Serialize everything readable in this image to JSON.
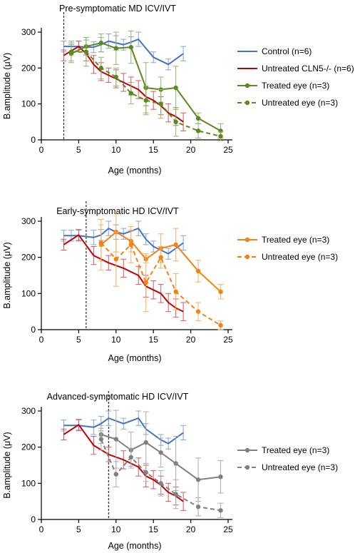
{
  "chart_data": [
    {
      "type": "line",
      "title": "Pre-symptomatic MD ICV/IVT",
      "xlabel": "Age (months)",
      "ylabel": "B.amplitude (μV)",
      "xlim": [
        0,
        25
      ],
      "ylim": [
        0,
        300
      ],
      "xticks": [
        0,
        5,
        10,
        15,
        20,
        25
      ],
      "yticks": [
        0,
        100,
        200,
        300
      ],
      "treatment_age_line": 3,
      "legend": [
        {
          "series": "control",
          "label": "Control (n=6)"
        },
        {
          "series": "untreated_cln5",
          "label": "Untreated CLN5-/- (n=6)"
        },
        {
          "series": "treated",
          "label": "Treated eye (n=3)"
        },
        {
          "series": "untreated_eye",
          "label": "Untreated eye (n=3)"
        }
      ],
      "series": [
        {
          "id": "control",
          "name": "Control (n=6)",
          "color": "#4472c4",
          "style": "solid",
          "marker": false,
          "points": [
            [
              3,
              260,
              15
            ],
            [
              4,
              260,
              15
            ],
            [
              5,
              260,
              15
            ],
            [
              6,
              258,
              20
            ],
            [
              7,
              258,
              15
            ],
            [
              8,
              265,
              20
            ],
            [
              9,
              275,
              20
            ],
            [
              10,
              270,
              20
            ],
            [
              11,
              265,
              15
            ],
            [
              12,
              272,
              15
            ],
            [
              13,
              280,
              20
            ],
            [
              15,
              230,
              15
            ],
            [
              17,
              210,
              15
            ],
            [
              19,
              240,
              20
            ]
          ]
        },
        {
          "id": "untreated_cln5",
          "name": "Untreated CLN5-/- (n=6)",
          "color": "#c00000",
          "style": "solid",
          "marker": false,
          "points": [
            [
              3,
              235,
              15
            ],
            [
              5,
              260,
              15
            ],
            [
              6,
              240,
              20
            ],
            [
              7,
              210,
              25
            ],
            [
              8,
              190,
              25
            ],
            [
              9,
              180,
              20
            ],
            [
              10,
              170,
              25
            ],
            [
              11,
              160,
              25
            ],
            [
              12,
              150,
              25
            ],
            [
              13,
              140,
              25
            ],
            [
              14,
              120,
              25
            ],
            [
              15,
              110,
              25
            ],
            [
              16,
              95,
              25
            ],
            [
              17,
              75,
              25
            ],
            [
              18,
              65,
              25
            ],
            [
              19,
              50,
              25
            ]
          ]
        },
        {
          "id": "treated",
          "name": "Treated eye (n=3)",
          "color": "#5a8a1e",
          "style": "solid",
          "marker": true,
          "points": [
            [
              4,
              240,
              25
            ],
            [
              6,
              260,
              25
            ],
            [
              8,
              270,
              25
            ],
            [
              10,
              255,
              45
            ],
            [
              12,
              258,
              45
            ],
            [
              14,
              145,
              70
            ],
            [
              16,
              140,
              35
            ],
            [
              18,
              145,
              60
            ],
            [
              21,
              60,
              15
            ],
            [
              24,
              25,
              20
            ]
          ]
        },
        {
          "id": "untreated_eye",
          "name": "Untreated eye (n=3)",
          "color": "#5a8a1e",
          "style": "dashed",
          "marker": true,
          "points": [
            [
              4,
              245,
              25
            ],
            [
              6,
              245,
              40
            ],
            [
              8,
              200,
              30
            ],
            [
              10,
              175,
              25
            ],
            [
              12,
              130,
              30
            ],
            [
              14,
              110,
              40
            ],
            [
              16,
              100,
              40
            ],
            [
              18,
              50,
              40
            ],
            [
              21,
              25,
              20
            ],
            [
              24,
              10,
              12
            ]
          ]
        }
      ]
    },
    {
      "type": "line",
      "title": "Early-symptomatic HD ICV/IVT",
      "xlabel": "Age (months)",
      "ylabel": "B.amplitude (μV)",
      "xlim": [
        0,
        25
      ],
      "ylim": [
        0,
        300
      ],
      "xticks": [
        0,
        5,
        10,
        15,
        20,
        25
      ],
      "yticks": [
        0,
        100,
        200,
        300
      ],
      "treatment_age_line": 6,
      "legend": [
        {
          "series": "treated",
          "label": "Treated eye (n=3)"
        },
        {
          "series": "untreated_eye",
          "label": "Untreated eye (n=3)"
        }
      ],
      "series": [
        {
          "id": "control",
          "name": "Control (n=6)",
          "color": "#4472c4",
          "style": "solid",
          "marker": false,
          "points": [
            [
              3,
              260,
              15
            ],
            [
              4,
              260,
              15
            ],
            [
              5,
              260,
              15
            ],
            [
              7,
              255,
              20
            ],
            [
              8,
              262,
              15
            ],
            [
              9,
              280,
              20
            ],
            [
              10,
              270,
              20
            ],
            [
              11,
              265,
              15
            ],
            [
              13,
              280,
              20
            ],
            [
              14,
              250,
              15
            ],
            [
              15,
              230,
              15
            ],
            [
              17,
              210,
              15
            ],
            [
              19,
              240,
              20
            ]
          ]
        },
        {
          "id": "untreated_cln5",
          "name": "Untreated CLN5-/- (n=6)",
          "color": "#c00000",
          "style": "solid",
          "marker": false,
          "points": [
            [
              3,
              235,
              15
            ],
            [
              5,
              262,
              15
            ],
            [
              7,
              205,
              25
            ],
            [
              9,
              185,
              20
            ],
            [
              11,
              170,
              25
            ],
            [
              13,
              150,
              25
            ],
            [
              14,
              120,
              30
            ],
            [
              15,
              110,
              25
            ],
            [
              16,
              100,
              25
            ],
            [
              17,
              75,
              25
            ],
            [
              18,
              60,
              25
            ],
            [
              19,
              50,
              25
            ]
          ]
        },
        {
          "id": "treated",
          "name": "Treated eye (n=3)",
          "color": "#f5820f",
          "style": "solid",
          "marker": true,
          "points": [
            [
              8,
              235,
              70
            ],
            [
              10,
              270,
              55
            ],
            [
              12,
              245,
              30
            ],
            [
              14,
              195,
              10
            ],
            [
              16,
              225,
              40
            ],
            [
              18,
              235,
              45
            ],
            [
              21,
              162,
              30
            ],
            [
              24,
              105,
              20
            ]
          ]
        },
        {
          "id": "untreated_eye",
          "name": "Untreated eye (n=3)",
          "color": "#f5820f",
          "style": "dashed",
          "marker": true,
          "points": [
            [
              8,
              240,
              50
            ],
            [
              10,
              195,
              75
            ],
            [
              12,
              235,
              50
            ],
            [
              14,
              130,
              80
            ],
            [
              16,
              200,
              30
            ],
            [
              18,
              105,
              50
            ],
            [
              21,
              50,
              25
            ],
            [
              24,
              12,
              12
            ]
          ]
        }
      ]
    },
    {
      "type": "line",
      "title": "Advanced-symptomatic HD ICV/IVT",
      "xlabel": "Age (months)",
      "ylabel": "B.amplitude (μV)",
      "xlim": [
        0,
        25
      ],
      "ylim": [
        0,
        300
      ],
      "xticks": [
        0,
        5,
        10,
        15,
        20,
        25
      ],
      "yticks": [
        0,
        100,
        200,
        300
      ],
      "treatment_age_line": 9,
      "legend": [
        {
          "series": "treated",
          "label": "Treated eye (n=3)"
        },
        {
          "series": "untreated_eye",
          "label": "Untreated eye (n=3)"
        }
      ],
      "series": [
        {
          "id": "control",
          "name": "Control (n=6)",
          "color": "#4472c4",
          "style": "solid",
          "marker": false,
          "points": [
            [
              3,
              260,
              15
            ],
            [
              5,
              260,
              15
            ],
            [
              7,
              255,
              20
            ],
            [
              8,
              265,
              20
            ],
            [
              9,
              280,
              20
            ],
            [
              11,
              265,
              15
            ],
            [
              13,
              280,
              20
            ],
            [
              14,
              250,
              15
            ],
            [
              16,
              220,
              15
            ],
            [
              17,
              210,
              15
            ],
            [
              19,
              240,
              20
            ]
          ]
        },
        {
          "id": "untreated_cln5",
          "name": "Untreated CLN5-/- (n=6)",
          "color": "#c00000",
          "style": "solid",
          "marker": false,
          "points": [
            [
              3,
              235,
              15
            ],
            [
              5,
              262,
              15
            ],
            [
              7,
              205,
              25
            ],
            [
              9,
              180,
              20
            ],
            [
              11,
              165,
              25
            ],
            [
              13,
              145,
              25
            ],
            [
              14,
              120,
              30
            ],
            [
              15,
              110,
              25
            ],
            [
              16,
              95,
              25
            ],
            [
              17,
              75,
              25
            ],
            [
              18,
              65,
              25
            ],
            [
              19,
              50,
              25
            ]
          ]
        },
        {
          "id": "treated",
          "name": "Treated eye (n=3)",
          "color": "#808080",
          "style": "solid",
          "marker": true,
          "points": [
            [
              8,
              235,
              25
            ],
            [
              10,
              222,
              80
            ],
            [
              12,
              192,
              50
            ],
            [
              14,
              213,
              85
            ],
            [
              16,
              185,
              40
            ],
            [
              18,
              155,
              75
            ],
            [
              21,
              110,
              60
            ],
            [
              24,
              118,
              45
            ]
          ]
        },
        {
          "id": "untreated_eye",
          "name": "Untreated eye (n=3)",
          "color": "#808080",
          "style": "dashed",
          "marker": true,
          "points": [
            [
              8,
              222,
              30
            ],
            [
              10,
              125,
              35
            ],
            [
              12,
              172,
              25
            ],
            [
              14,
              130,
              25
            ],
            [
              16,
              100,
              35
            ],
            [
              18,
              70,
              40
            ],
            [
              21,
              35,
              25
            ],
            [
              24,
              25,
              20
            ]
          ]
        }
      ]
    }
  ]
}
